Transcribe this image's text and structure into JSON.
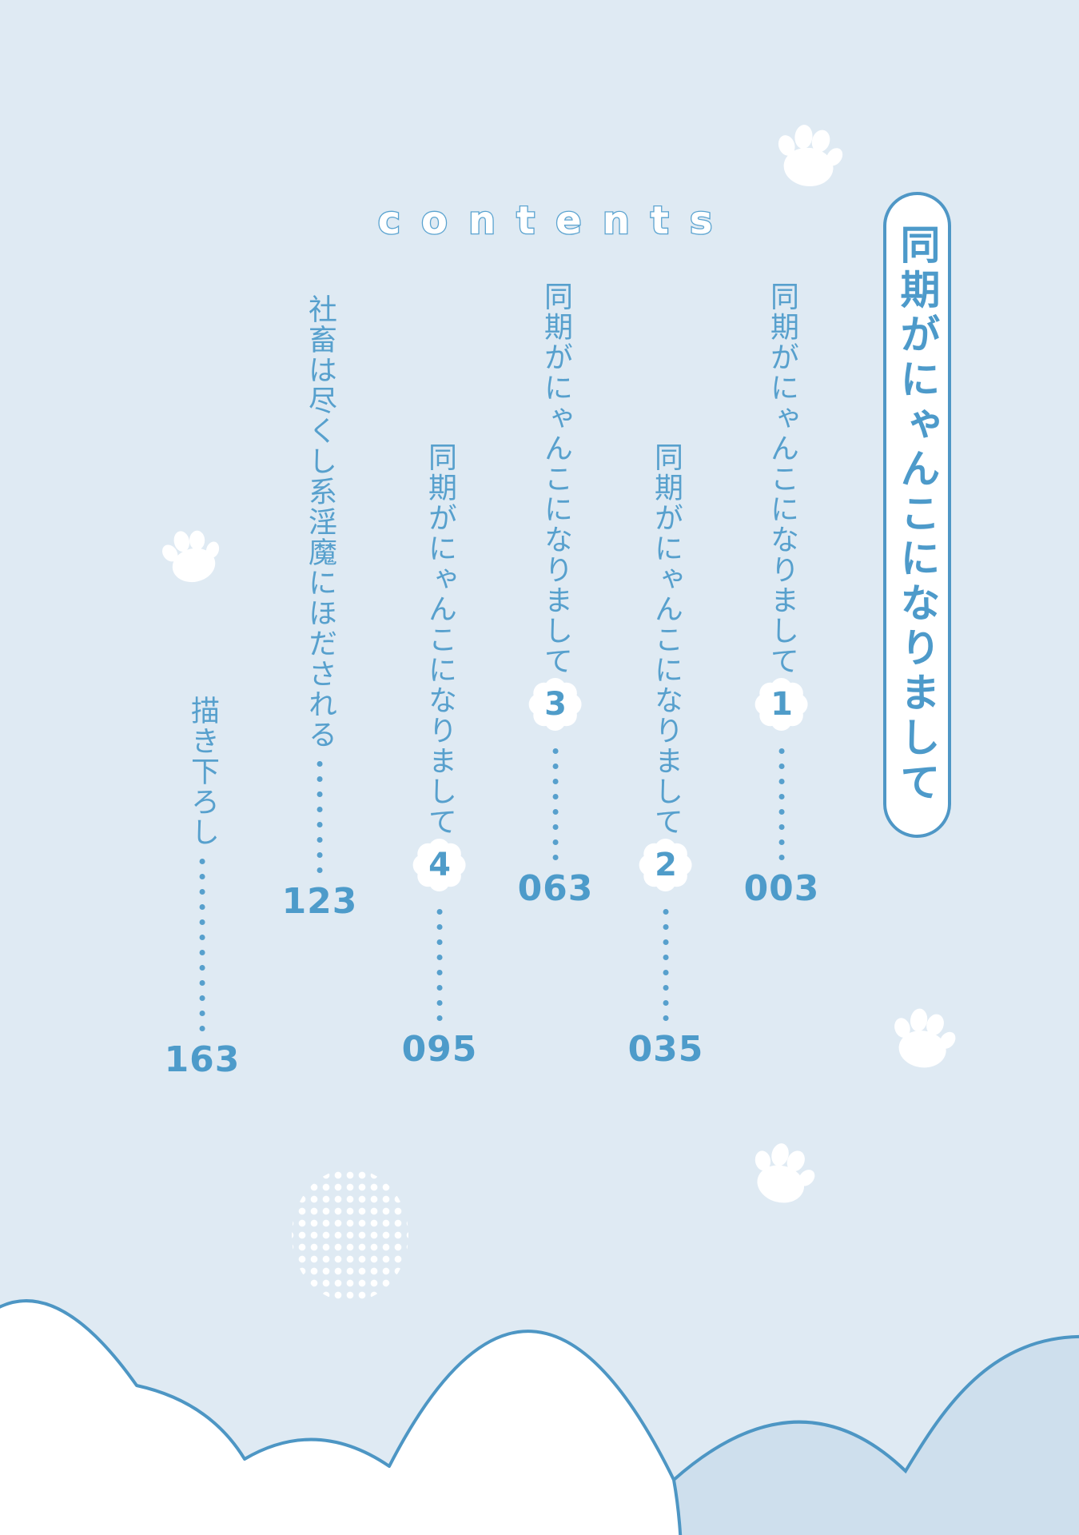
{
  "page": {
    "contents_label": "contents",
    "book_title": "同期がにゃんこになりまして"
  },
  "toc": {
    "items": [
      {
        "title": "同期がにゃんこになりまして",
        "number": "1",
        "page": "003"
      },
      {
        "title": "同期がにゃんこになりまして",
        "number": "2",
        "page": "035"
      },
      {
        "title": "同期がにゃんこになりまして",
        "number": "3",
        "page": "063"
      },
      {
        "title": "同期がにゃんこになりまして",
        "number": "4",
        "page": "095"
      },
      {
        "title": "社畜は尽くし系淫魔にほだされる",
        "number": "",
        "page": "123"
      },
      {
        "title": "描き下ろし",
        "number": "",
        "page": "163"
      }
    ]
  },
  "colors": {
    "background": "#dfeaf3",
    "text_blue": "#57a0cd",
    "title_blue": "#4d9aca",
    "outline_blue": "#4d96c4",
    "cloud_shadow_fill": "#cedfed",
    "white": "#ffffff"
  },
  "decorations": {
    "paw_icons": "white cat paw prints (4)",
    "chapter_badge": "white flower-scalloped badge with chapter number",
    "dot_grid": "white dot-grid circle",
    "clouds": "white and pale-blue outlined clouds along bottom edge"
  }
}
